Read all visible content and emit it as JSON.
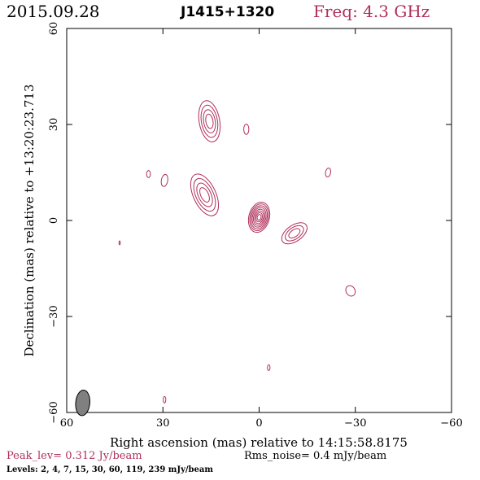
{
  "header": {
    "date": "2015.09.28",
    "source": "J1415+1320",
    "frequency": "Freq: 4.3 GHz"
  },
  "footer": {
    "peak": "Peak_lev=  0.312 Jy/beam",
    "rms": "Rms_noise=  0.4 mJy/beam",
    "levels": "Levels:   2,   4,   7,   15,   30,   60,  119,  239  mJy/beam"
  },
  "colors": {
    "contour": "#b0305a",
    "title_accent": "#b0305a",
    "beam": "#808080"
  },
  "chart_data": {
    "type": "contour",
    "xlabel": "Right ascension (mas) relative to 14:15:58.8175",
    "ylabel": "Declination (mas) relative to +13:20:23.713",
    "xlim": [
      60,
      -60
    ],
    "ylim": [
      -60,
      60
    ],
    "xticks": [
      60,
      30,
      0,
      -30,
      -60
    ],
    "yticks": [
      -60,
      -30,
      0,
      30,
      60
    ],
    "xtick_labels": [
      "60",
      "30",
      "0",
      "−30",
      "−60"
    ],
    "ytick_labels": [
      "−60",
      "−30",
      "0",
      "30",
      "60"
    ],
    "contour_levels_mJy": [
      2,
      4,
      7,
      15,
      30,
      60,
      119,
      239
    ],
    "beam": {
      "x": 55,
      "y": -57,
      "major": 4.0,
      "minor": 2.2,
      "pa_deg": 5
    },
    "components": [
      {
        "name": "core",
        "x": 0,
        "y": 1,
        "nlev": 8,
        "rx": 3.2,
        "ry": 4.8,
        "angle": 15
      },
      {
        "name": "jet-inner",
        "x": 17,
        "y": 8,
        "nlev": 4,
        "rx": 3.5,
        "ry": 7,
        "angle": -25
      },
      {
        "name": "jet-outer",
        "x": 15.5,
        "y": 31,
        "nlev": 4,
        "rx": 3.2,
        "ry": 6.5,
        "angle": -10
      },
      {
        "name": "east-knot",
        "x": -11,
        "y": -4,
        "nlev": 3,
        "rx": 4.5,
        "ry": 2.5,
        "angle": -35
      },
      {
        "name": "blob-a",
        "x": 4,
        "y": 28.5,
        "nlev": 1,
        "rx": 0.8,
        "ry": 1.6,
        "angle": 0
      },
      {
        "name": "blob-b",
        "x": 29.5,
        "y": 12.5,
        "nlev": 1,
        "rx": 1.0,
        "ry": 1.9,
        "angle": 10
      },
      {
        "name": "blob-c",
        "x": 34.5,
        "y": 14.5,
        "nlev": 1,
        "rx": 0.6,
        "ry": 1.1,
        "angle": 0
      },
      {
        "name": "blob-d",
        "x": -21.5,
        "y": 15,
        "nlev": 1,
        "rx": 0.8,
        "ry": 1.4,
        "angle": 10
      },
      {
        "name": "blob-e",
        "x": -28.5,
        "y": -22,
        "nlev": 1,
        "rx": 1.4,
        "ry": 1.7,
        "angle": -30
      },
      {
        "name": "blob-f",
        "x": -3,
        "y": -46,
        "nlev": 1,
        "rx": 0.4,
        "ry": 0.9,
        "angle": 0
      },
      {
        "name": "blob-g",
        "x": 29.5,
        "y": -56,
        "nlev": 1,
        "rx": 0.4,
        "ry": 1.0,
        "angle": 0
      },
      {
        "name": "blob-h",
        "x": 43.5,
        "y": -7,
        "nlev": 1,
        "rx": 0.2,
        "ry": 0.6,
        "angle": 0
      }
    ]
  }
}
